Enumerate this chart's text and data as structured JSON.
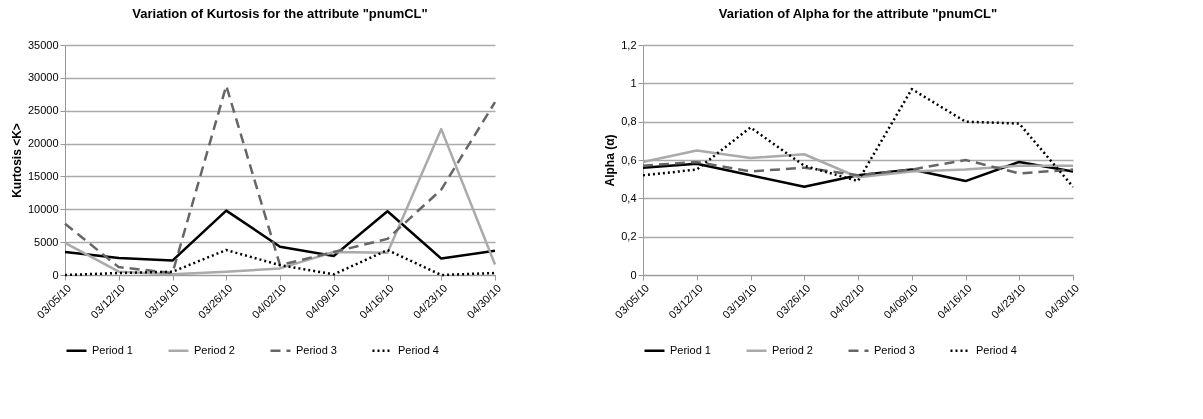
{
  "chart_data": [
    {
      "type": "line",
      "title": "Variation of Kurtosis for the attribute \"pnumCL\"",
      "ylabel": "Kurtosis <K>",
      "categories": [
        "03/05/10",
        "03/12/10",
        "03/19/10",
        "03/26/10",
        "04/02/10",
        "04/09/10",
        "04/16/10",
        "04/23/10",
        "04/30/10"
      ],
      "ylim": [
        0,
        35000
      ],
      "yticks": [
        0,
        5000,
        10000,
        15000,
        20000,
        25000,
        30000,
        35000
      ],
      "grid": "y",
      "legend": "bottom",
      "series": [
        {
          "name": "Period 1",
          "color": "#000000",
          "line_style": "solid",
          "values": [
            3500,
            2600,
            2200,
            9800,
            4300,
            2900,
            9700,
            2500,
            3700
          ]
        },
        {
          "name": "Period 2",
          "color": "#aaaaaa",
          "line_style": "solid",
          "values": [
            4900,
            500,
            100,
            500,
            1000,
            3500,
            3400,
            22200,
            1600
          ]
        },
        {
          "name": "Period 3",
          "color": "#666666",
          "line_style": "dashed",
          "values": [
            7800,
            1200,
            300,
            28800,
            1500,
            3500,
            5500,
            13000,
            26300
          ]
        },
        {
          "name": "Period 4",
          "color": "#000000",
          "line_style": "dotted",
          "values": [
            0,
            300,
            500,
            3800,
            1500,
            100,
            3800,
            0,
            300
          ]
        }
      ]
    },
    {
      "type": "line",
      "title": "Variation of Alpha for the attribute \"pnumCL\"",
      "ylabel": "Alpha (α)",
      "categories": [
        "03/05/10",
        "03/12/10",
        "03/19/10",
        "03/26/10",
        "04/02/10",
        "04/09/10",
        "04/16/10",
        "04/23/10",
        "04/30/10"
      ],
      "ylim": [
        0,
        1.2
      ],
      "yticks": [
        0,
        {
          "value": 0.2,
          "label": "0,2"
        },
        {
          "value": 0.4,
          "label": "0,4"
        },
        {
          "value": 0.6,
          "label": "0,6"
        },
        {
          "value": 0.8,
          "label": "0,8"
        },
        1,
        {
          "value": 1.2,
          "label": "1,2"
        }
      ],
      "grid": "y",
      "legend": "bottom",
      "series": [
        {
          "name": "Period 1",
          "color": "#000000",
          "line_style": "solid",
          "values": [
            0.56,
            0.58,
            0.52,
            0.46,
            0.52,
            0.55,
            0.49,
            0.59,
            0.54
          ]
        },
        {
          "name": "Period 2",
          "color": "#aaaaaa",
          "line_style": "solid",
          "values": [
            0.59,
            0.65,
            0.61,
            0.63,
            0.51,
            0.54,
            0.55,
            0.57,
            0.57
          ]
        },
        {
          "name": "Period 3",
          "color": "#666666",
          "line_style": "dashed",
          "values": [
            0.57,
            0.59,
            0.54,
            0.56,
            0.52,
            0.55,
            0.6,
            0.53,
            0.55
          ]
        },
        {
          "name": "Period 4",
          "color": "#000000",
          "line_style": "dotted",
          "values": [
            0.52,
            0.55,
            0.77,
            0.57,
            0.49,
            0.97,
            0.8,
            0.79,
            0.46
          ]
        }
      ]
    }
  ]
}
